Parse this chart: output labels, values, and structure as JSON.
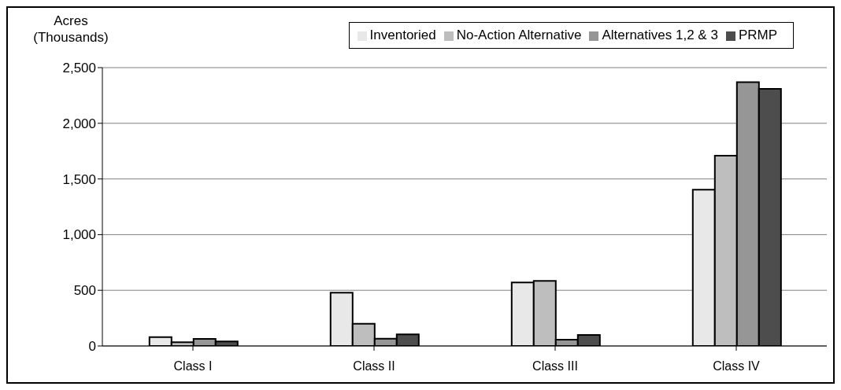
{
  "chart_data": {
    "type": "bar",
    "ylabel": "Acres (Thousands)",
    "categories": [
      "Class I",
      "Class II",
      "Class III",
      "Class IV"
    ],
    "series": [
      {
        "name": "Inventoried",
        "color": "#e8e8e8",
        "values": [
          80,
          479,
          571,
          1403
        ]
      },
      {
        "name": "No-Action Alternative",
        "color": "#bebebe",
        "values": [
          33,
          200,
          585,
          1709
        ]
      },
      {
        "name": "Alternatives 1,2 & 3",
        "color": "#969696",
        "values": [
          63,
          66,
          56,
          2369
        ]
      },
      {
        "name": "PRMP",
        "color": "#4d4d4d",
        "values": [
          40,
          104,
          99,
          2310
        ]
      }
    ],
    "ylim": [
      0,
      2500
    ],
    "yticks": [
      0,
      500,
      {
        "value": 1000,
        "label": "1,000"
      },
      {
        "value": 1500,
        "label": "1,500"
      },
      {
        "value": 2000,
        "label": "2,000"
      },
      {
        "value": 2500,
        "label": "2,500"
      }
    ],
    "grid": "y",
    "legend": "top right"
  }
}
